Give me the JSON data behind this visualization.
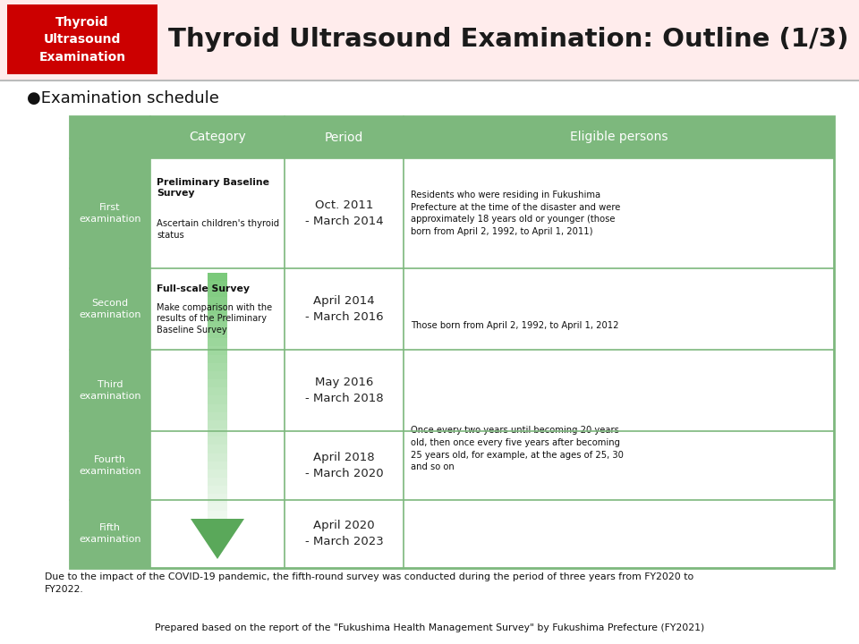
{
  "title": "Thyroid Ultrasound Examination: Outline (1/3)",
  "header_box_text": "Thyroid\nUltrasound\nExamination",
  "header_box_color": "#CC0000",
  "header_box_text_color": "#FFFFFF",
  "title_color": "#1a1a1a",
  "section_title": "●Examination schedule",
  "table_header_color": "#7db87d",
  "table_header_text_color": "#FFFFFF",
  "table_row_dark_color": "#7db87d",
  "col_headers": [
    "",
    "Category",
    "Period",
    "Eligible persons"
  ],
  "row_labels": [
    "First\nexamination",
    "Second\nexamination",
    "Third\nexamination",
    "Fourth\nexamination",
    "Fifth\nexamination"
  ],
  "category_bold": [
    "Preliminary Baseline\nSurvey",
    "Full-scale Survey",
    "",
    "",
    ""
  ],
  "category_sub": [
    "Ascertain children's thyroid\nstatus",
    "Make comparison with the\nresults of the Preliminary\nBaseline Survey",
    "",
    "",
    ""
  ],
  "period_col": [
    "Oct. 2011\n- March 2014",
    "April 2014\n- March 2016",
    "May 2016\n- March 2018",
    "April 2018\n- March 2020",
    "April 2020\n- March 2023"
  ],
  "eligible_row0": "Residents who were residing in Fukushima\nPrefecture at the time of the disaster and were\napproximately 18 years old or younger (those\nborn from April 2, 1992, to April 1, 2011)",
  "eligible_row1": "Those born from April 2, 1992, to April 1, 2012",
  "eligible_row2": "Once every two years until becoming 20 years\nold, then once every five years after becoming\n25 years old, for example, at the ages of 25, 30\nand so on",
  "footnote1": "Due to the impact of the COVID-19 pandemic, the fifth-round survey was conducted during the period of three years from FY2020 to\nFY2022.",
  "footnote2": "Prepared based on the report of the \"Fukushima Health Management Survey\" by Fukushima Prefecture (FY2021)",
  "header_bg_color": "#FFECEC",
  "white": "#FFFFFF",
  "green_border": "#7db87d",
  "arrow_top_color": "#e8f5e8",
  "arrow_bot_color": "#5aa85a"
}
